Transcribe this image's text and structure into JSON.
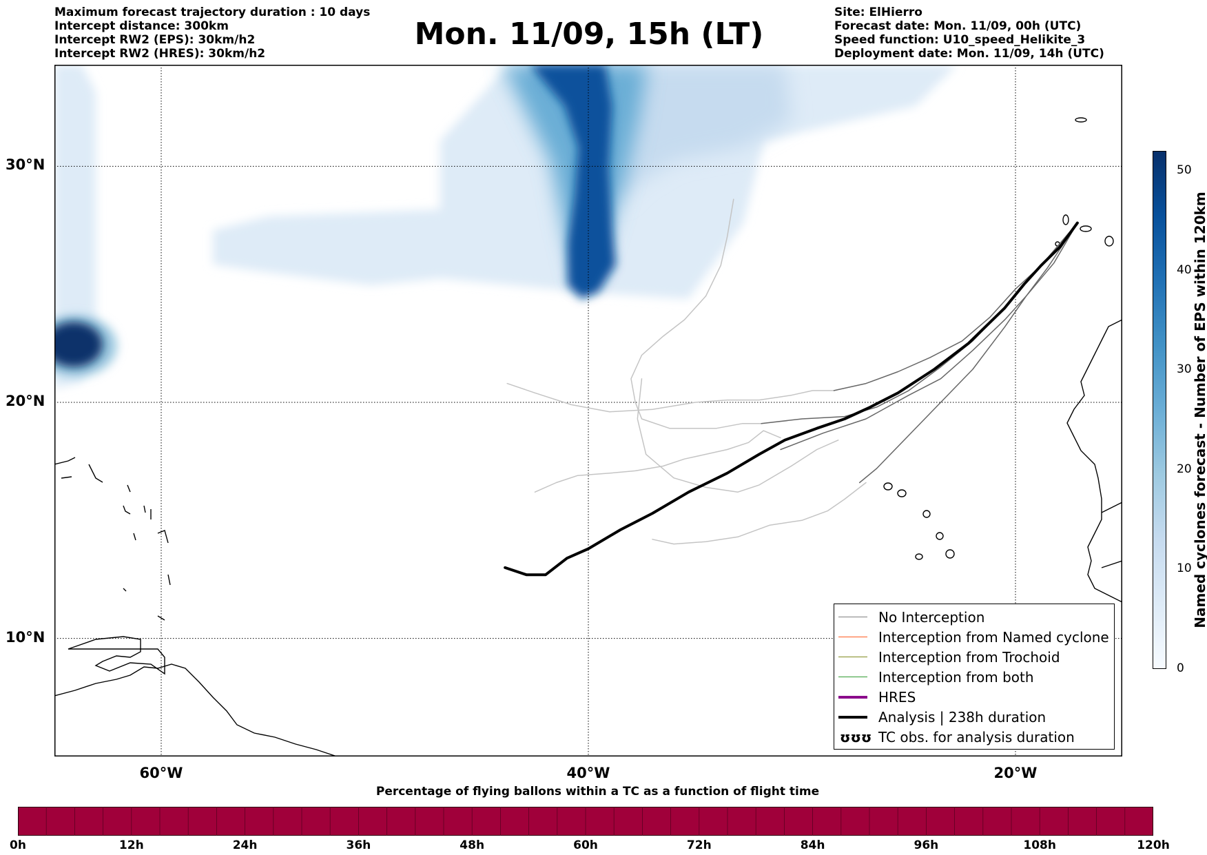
{
  "header_left": [
    "Maximum forecast trajectory duration : 10 days",
    "Intercept distance: 300km",
    "Intercept RW2 (EPS):  30km/h2",
    "Intercept RW2 (HRES): 30km/h2"
  ],
  "header_right": [
    "Site: ElHierro",
    "Forecast date: Mon. 11/09, 00h (UTC)",
    "Speed function: U10_speed_Helikite_3",
    "Deployment date: Mon. 11/09, 14h (UTC)"
  ],
  "title": "Mon. 11/09, 15h (LT)",
  "map": {
    "lon_range": [
      -65,
      -15
    ],
    "lat_range": [
      5,
      34.3
    ],
    "lon_ticks": [
      {
        "lon": -60,
        "label": "60°W"
      },
      {
        "lon": -40,
        "label": "40°W"
      },
      {
        "lon": -20,
        "label": "20°W"
      }
    ],
    "lat_ticks": [
      {
        "lat": 30,
        "label": "30°N"
      },
      {
        "lat": 20,
        "label": "20°N"
      },
      {
        "lat": 10,
        "label": "10°N"
      }
    ],
    "analysis_track": [
      [
        -43.9,
        13.0
      ],
      [
        -42.9,
        12.7
      ],
      [
        -42.0,
        12.7
      ],
      [
        -41.0,
        13.4
      ],
      [
        -40.0,
        13.8
      ],
      [
        -38.5,
        14.6
      ],
      [
        -37.0,
        15.3
      ],
      [
        -35.3,
        16.2
      ],
      [
        -33.5,
        17.0
      ],
      [
        -32.0,
        17.8
      ],
      [
        -30.8,
        18.4
      ],
      [
        -29.3,
        18.9
      ],
      [
        -28.0,
        19.3
      ],
      [
        -26.8,
        19.8
      ],
      [
        -25.5,
        20.4
      ],
      [
        -23.8,
        21.4
      ],
      [
        -22.2,
        22.5
      ],
      [
        -20.5,
        24.0
      ],
      [
        -19.6,
        25.0
      ],
      [
        -18.8,
        25.8
      ],
      [
        -17.9,
        26.6
      ],
      [
        -17.1,
        27.6
      ]
    ],
    "eps_tracks_dark": [
      [
        [
          -31.9,
          19.1
        ],
        [
          -30.0,
          19.3
        ],
        [
          -28.0,
          19.4
        ],
        [
          -26.5,
          19.8
        ],
        [
          -25.0,
          20.5
        ],
        [
          -23.5,
          21.5
        ],
        [
          -22.0,
          22.6
        ],
        [
          -20.5,
          24.0
        ],
        [
          -19.5,
          25.1
        ],
        [
          -18.5,
          26.1
        ],
        [
          -17.1,
          27.6
        ]
      ],
      [
        [
          -28.5,
          20.5
        ],
        [
          -27.0,
          20.8
        ],
        [
          -25.5,
          21.3
        ],
        [
          -24.0,
          21.9
        ],
        [
          -22.5,
          22.6
        ],
        [
          -21.2,
          23.6
        ],
        [
          -20.0,
          24.8
        ],
        [
          -18.8,
          25.8
        ],
        [
          -17.1,
          27.6
        ]
      ],
      [
        [
          -31.0,
          18.0
        ],
        [
          -29.0,
          18.7
        ],
        [
          -27.0,
          19.3
        ],
        [
          -25.0,
          20.3
        ],
        [
          -23.5,
          21.0
        ],
        [
          -22.0,
          22.2
        ],
        [
          -20.5,
          23.5
        ],
        [
          -19.5,
          24.5
        ],
        [
          -18.2,
          25.9
        ],
        [
          -17.1,
          27.6
        ]
      ],
      [
        [
          -27.3,
          16.6
        ],
        [
          -26.5,
          17.2
        ],
        [
          -25.0,
          18.6
        ],
        [
          -23.5,
          20.0
        ],
        [
          -22.0,
          21.4
        ],
        [
          -20.5,
          23.2
        ],
        [
          -19.5,
          24.5
        ],
        [
          -18.5,
          25.7
        ],
        [
          -17.1,
          27.6
        ]
      ]
    ],
    "eps_tracks_light": [
      [
        [
          -43.8,
          20.8
        ],
        [
          -42.5,
          20.4
        ],
        [
          -40.8,
          19.9
        ],
        [
          -39.0,
          19.6
        ],
        [
          -37.0,
          19.7
        ],
        [
          -35.0,
          20.0
        ],
        [
          -33.5,
          20.1
        ],
        [
          -32.0,
          20.1
        ],
        [
          -30.5,
          20.3
        ],
        [
          -29.5,
          20.5
        ],
        [
          -28.5,
          20.5
        ]
      ],
      [
        [
          -42.5,
          16.2
        ],
        [
          -41.5,
          16.6
        ],
        [
          -40.5,
          16.9
        ],
        [
          -39.0,
          17.0
        ],
        [
          -37.8,
          17.1
        ],
        [
          -36.5,
          17.3
        ],
        [
          -35.5,
          17.6
        ],
        [
          -34.5,
          17.8
        ],
        [
          -33.5,
          18.0
        ],
        [
          -32.5,
          18.3
        ],
        [
          -31.8,
          18.8
        ],
        [
          -31.0,
          18.5
        ]
      ],
      [
        [
          -33.2,
          28.6
        ],
        [
          -33.5,
          27.0
        ],
        [
          -33.8,
          25.8
        ],
        [
          -34.5,
          24.5
        ],
        [
          -35.5,
          23.5
        ],
        [
          -36.5,
          22.8
        ],
        [
          -37.5,
          22.0
        ],
        [
          -38.0,
          21.0
        ],
        [
          -37.8,
          20.0
        ],
        [
          -37.5,
          19.3
        ],
        [
          -36.2,
          18.9
        ],
        [
          -35.0,
          18.9
        ],
        [
          -34.0,
          18.9
        ],
        [
          -32.8,
          19.1
        ],
        [
          -31.9,
          19.1
        ]
      ],
      [
        [
          -37.5,
          21.0
        ],
        [
          -37.7,
          19.3
        ],
        [
          -37.3,
          17.8
        ],
        [
          -36.0,
          16.8
        ],
        [
          -34.5,
          16.4
        ],
        [
          -33.0,
          16.2
        ],
        [
          -32.0,
          16.5
        ],
        [
          -30.5,
          17.3
        ],
        [
          -29.3,
          18.0
        ],
        [
          -28.3,
          18.4
        ]
      ],
      [
        [
          -37.0,
          14.2
        ],
        [
          -36.0,
          14.0
        ],
        [
          -34.5,
          14.1
        ],
        [
          -33.0,
          14.3
        ],
        [
          -31.5,
          14.8
        ],
        [
          -30.0,
          15.0
        ],
        [
          -28.8,
          15.4
        ],
        [
          -28.0,
          15.9
        ],
        [
          -27.0,
          16.6
        ]
      ]
    ]
  },
  "colorbar": {
    "label": "Named cyclones forecast - Number of EPS within 120km",
    "min": 0,
    "max": 52,
    "ticks": [
      "0",
      "10",
      "20",
      "30",
      "40",
      "50"
    ],
    "colors": [
      "#f7fbff",
      "#deebf7",
      "#c6dbef",
      "#9ecae1",
      "#6baed6",
      "#4292c6",
      "#2171b5",
      "#08519c",
      "#08306b"
    ]
  },
  "legend": [
    {
      "label": "No Interception",
      "color": "#808080",
      "width": 1.5
    },
    {
      "label": "Interception from Named cyclone",
      "color": "#ff5a1f",
      "width": 1.5
    },
    {
      "label": "Interception from Trochoid",
      "color": "#7f8a1e",
      "width": 1.5
    },
    {
      "label": "Interception from both",
      "color": "#2e9a2e",
      "width": 1.5
    },
    {
      "label": "HRES",
      "color": "#8b0a8b",
      "width": 4
    },
    {
      "label": "Analysis | 238h duration",
      "color": "#000000",
      "width": 4
    },
    {
      "label": "TC obs. for analysis duration",
      "color": "#000000",
      "width": 0,
      "symbol": "ʊʊʊ"
    }
  ],
  "pct_bar": {
    "label": "Percentage of flying ballons within a TC as a function of flight time",
    "color": "#a0003a",
    "ticks": [
      "0h",
      "12h",
      "24h",
      "36h",
      "48h",
      "60h",
      "72h",
      "84h",
      "96h",
      "108h",
      "120h"
    ]
  }
}
